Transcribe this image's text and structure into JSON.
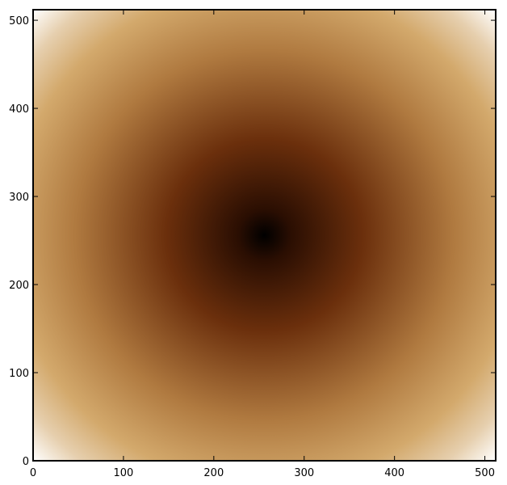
{
  "chart_data": {
    "type": "heatmap",
    "title": "",
    "xlabel": "",
    "ylabel": "",
    "xlim": [
      0,
      512
    ],
    "ylim": [
      0,
      512
    ],
    "center": [
      256,
      256
    ],
    "value": "distance from center",
    "colormap": "copper-tan",
    "colors": {
      "low": "#000000",
      "mid_dark": "#6b2f0c",
      "mid": "#b07a40",
      "high": "#d3a96c",
      "max": "#ffffff"
    },
    "xticks": [
      0,
      100,
      200,
      300,
      400,
      500
    ],
    "yticks": [
      0,
      100,
      200,
      300,
      400,
      500
    ],
    "xtick_labels": [
      "0",
      "100",
      "200",
      "300",
      "400",
      "500"
    ],
    "ytick_labels": [
      "0",
      "100",
      "200",
      "300",
      "400",
      "500"
    ],
    "grid": false,
    "legend": "none"
  }
}
